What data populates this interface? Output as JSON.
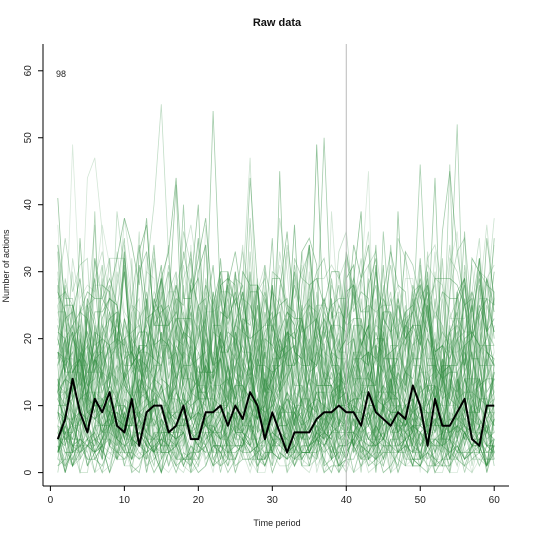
{
  "chart_data": {
    "type": "line",
    "title": "Raw data",
    "xlabel": "Time period",
    "ylabel": "Number of actions",
    "xlim": [
      -1,
      62
    ],
    "ylim": [
      -2,
      64
    ],
    "x_ticks": [
      0,
      10,
      20,
      30,
      40,
      50,
      60
    ],
    "y_ticks": [
      0,
      10,
      20,
      30,
      40,
      50,
      60
    ],
    "x_tick_labels": [
      "0",
      "10",
      "20",
      "30",
      "40",
      "50",
      "60"
    ],
    "y_tick_labels": [
      "0",
      "10",
      "20",
      "30",
      "40",
      "50",
      "60"
    ],
    "grid": false,
    "reference_line_x": 40,
    "annotation": "98",
    "background_series_count": 98,
    "background_color": "#2e8b3e",
    "highlight_color": "#000000",
    "x": [
      1,
      2,
      3,
      4,
      5,
      6,
      7,
      8,
      9,
      10,
      11,
      12,
      13,
      14,
      15,
      16,
      17,
      18,
      19,
      20,
      21,
      22,
      23,
      24,
      25,
      26,
      27,
      28,
      29,
      30,
      31,
      32,
      33,
      34,
      35,
      36,
      37,
      38,
      39,
      40,
      41,
      42,
      43,
      44,
      45,
      46,
      47,
      48,
      49,
      50,
      51,
      52,
      53,
      54,
      55,
      56,
      57,
      58,
      59,
      60
    ],
    "highlight_values": [
      5,
      8,
      14,
      9,
      6,
      11,
      9,
      12,
      7,
      6,
      11,
      4,
      9,
      10,
      10,
      6,
      7,
      10,
      5,
      5,
      9,
      9,
      10,
      7,
      10,
      8,
      12,
      10,
      5,
      9,
      6,
      3,
      6,
      6,
      6,
      8,
      9,
      9,
      10,
      9,
      9,
      7,
      12,
      9,
      8,
      7,
      9,
      8,
      13,
      10,
      4,
      11,
      7,
      7,
      9,
      11,
      5,
      4,
      10,
      10
    ]
  }
}
